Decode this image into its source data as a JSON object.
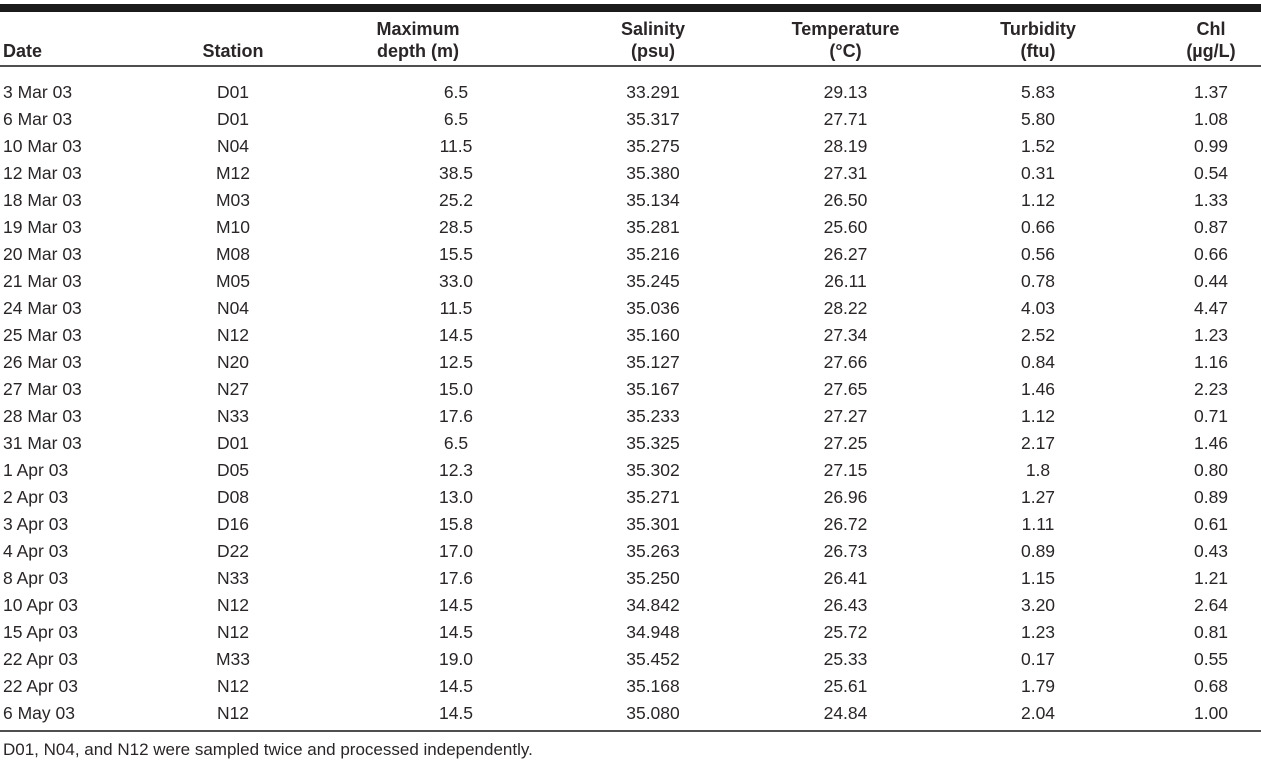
{
  "chart_data": {
    "type": "table",
    "columns": [
      {
        "id": "date",
        "header_lines": [
          "Date"
        ]
      },
      {
        "id": "station",
        "header_lines": [
          "Station"
        ]
      },
      {
        "id": "depth",
        "header_lines": [
          "Maximum",
          "depth (m)"
        ]
      },
      {
        "id": "salinity",
        "header_lines": [
          "Salinity",
          "(psu)"
        ]
      },
      {
        "id": "temperature",
        "header_lines": [
          "Temperature",
          "(°C)"
        ]
      },
      {
        "id": "turbidity",
        "header_lines": [
          "Turbidity",
          "(ftu)"
        ]
      },
      {
        "id": "chl",
        "header_lines": [
          "Chl",
          "(µg/L)"
        ]
      }
    ],
    "rows": [
      [
        "3 Mar 03",
        "D01",
        "6.5",
        "33.291",
        "29.13",
        "5.83",
        "1.37"
      ],
      [
        "6 Mar 03",
        "D01",
        "6.5",
        "35.317",
        "27.71",
        "5.80",
        "1.08"
      ],
      [
        "10 Mar 03",
        "N04",
        "11.5",
        "35.275",
        "28.19",
        "1.52",
        "0.99"
      ],
      [
        "12 Mar 03",
        "M12",
        "38.5",
        "35.380",
        "27.31",
        "0.31",
        "0.54"
      ],
      [
        "18 Mar 03",
        "M03",
        "25.2",
        "35.134",
        "26.50",
        "1.12",
        "1.33"
      ],
      [
        "19 Mar 03",
        "M10",
        "28.5",
        "35.281",
        "25.60",
        "0.66",
        "0.87"
      ],
      [
        "20 Mar 03",
        "M08",
        "15.5",
        "35.216",
        "26.27",
        "0.56",
        "0.66"
      ],
      [
        "21 Mar 03",
        "M05",
        "33.0",
        "35.245",
        "26.11",
        "0.78",
        "0.44"
      ],
      [
        "24 Mar 03",
        "N04",
        "11.5",
        "35.036",
        "28.22",
        "4.03",
        "4.47"
      ],
      [
        "25 Mar 03",
        "N12",
        "14.5",
        "35.160",
        "27.34",
        "2.52",
        "1.23"
      ],
      [
        "26 Mar 03",
        "N20",
        "12.5",
        "35.127",
        "27.66",
        "0.84",
        "1.16"
      ],
      [
        "27 Mar 03",
        "N27",
        "15.0",
        "35.167",
        "27.65",
        "1.46",
        "2.23"
      ],
      [
        "28 Mar 03",
        "N33",
        "17.6",
        "35.233",
        "27.27",
        "1.12",
        "0.71"
      ],
      [
        "31 Mar 03",
        "D01",
        "6.5",
        "35.325",
        "27.25",
        "2.17",
        "1.46"
      ],
      [
        "1 Apr 03",
        "D05",
        "12.3",
        "35.302",
        "27.15",
        "1.8",
        "0.80"
      ],
      [
        "2 Apr 03",
        "D08",
        "13.0",
        "35.271",
        "26.96",
        "1.27",
        "0.89"
      ],
      [
        "3 Apr 03",
        "D16",
        "15.8",
        "35.301",
        "26.72",
        "1.11",
        "0.61"
      ],
      [
        "4 Apr 03",
        "D22",
        "17.0",
        "35.263",
        "26.73",
        "0.89",
        "0.43"
      ],
      [
        "8 Apr 03",
        "N33",
        "17.6",
        "35.250",
        "26.41",
        "1.15",
        "1.21"
      ],
      [
        "10 Apr 03",
        "N12",
        "14.5",
        "34.842",
        "26.43",
        "3.20",
        "2.64"
      ],
      [
        "15 Apr 03",
        "N12",
        "14.5",
        "34.948",
        "25.72",
        "1.23",
        "0.81"
      ],
      [
        "22 Apr 03",
        "M33",
        "19.0",
        "35.452",
        "25.33",
        "0.17",
        "0.55"
      ],
      [
        "22 Apr 03",
        "N12",
        "14.5",
        "35.168",
        "25.61",
        "1.79",
        "0.68"
      ],
      [
        "6 May 03",
        "N12",
        "14.5",
        "35.080",
        "24.84",
        "2.04",
        "1.00"
      ]
    ],
    "footnote": "D01, N04, and N12 were sampled twice and processed independently."
  },
  "colors": {
    "text": "#2a2627",
    "rule_heavy": "#1b1b1b",
    "rule_light": "#4f4f4f",
    "background": "#ffffff"
  }
}
